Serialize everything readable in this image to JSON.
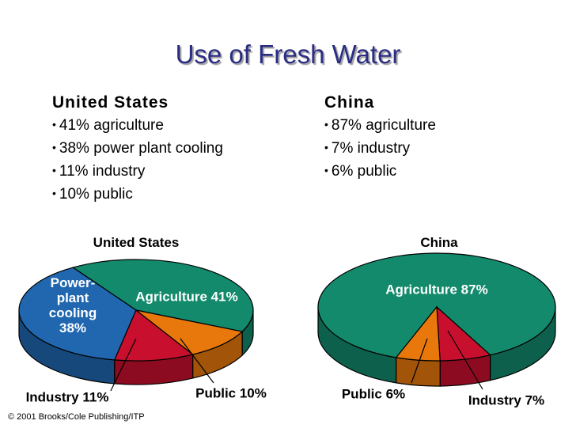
{
  "title": "Use of Fresh Water",
  "columns": [
    {
      "heading": "United States",
      "items": [
        "41% agriculture",
        "38% power plant cooling",
        "11% industry",
        "10% public"
      ]
    },
    {
      "heading": "China",
      "items": [
        "87% agriculture",
        "7% industry",
        "6% public"
      ]
    }
  ],
  "chart_data": [
    {
      "type": "pie",
      "title": "United States",
      "values": [
        41,
        38,
        11,
        10
      ],
      "value_labels": [
        "Agriculture 41%",
        "Power-plant cooling 38%",
        "Industry 11%",
        "Public 10%"
      ],
      "colors": [
        "#138a6c",
        "#2167b0",
        "#c8102e",
        "#e8780c"
      ]
    },
    {
      "type": "pie",
      "title": "China",
      "values": [
        87,
        7,
        6
      ],
      "value_labels": [
        "Agriculture 87%",
        "Industry 7%",
        "Public 6%"
      ],
      "colors": [
        "#138a6c",
        "#c8102e",
        "#e8780c"
      ]
    }
  ],
  "credit": "© 2001 Brooks/Cole Publishing/ITP"
}
